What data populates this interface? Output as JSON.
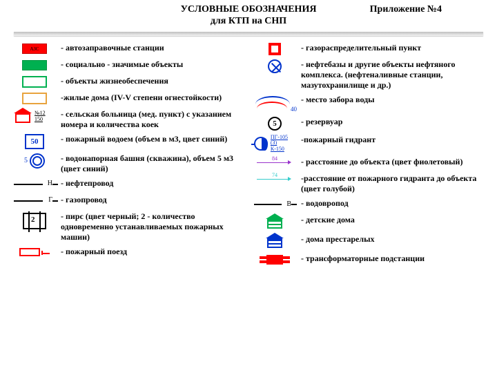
{
  "header": {
    "title_line1": "УСЛОВНЫЕ ОБОЗНАЧЕНИЯ",
    "title_line2": "для КТП на СНП",
    "appendix": "Приложение №4"
  },
  "left": [
    {
      "sym": "box-red-filled",
      "inner": "АЗС",
      "desc": "- автозаправочные станции"
    },
    {
      "sym": "box-green-filled",
      "desc": "- социально - значимые объекты"
    },
    {
      "sym": "box-green-out",
      "desc": "- объекты жизнеобеспечения"
    },
    {
      "sym": "box-orange-out",
      "desc": "-жилые дома (IV-V степени огнестойкости)"
    },
    {
      "sym": "hospital",
      "num_top": "№12",
      "num_bot": "150",
      "desc": "- сельская больница (мед. пункт)  с указанием номера и количества коек"
    },
    {
      "sym": "box-blue-50",
      "inner": "50",
      "desc": "- пожарный водоем (объем в м3, цвет синий)"
    },
    {
      "sym": "ring-blue",
      "side": "5",
      "desc": "- водонапорная башня (скважина), объем 5 м3 (цвет синий)"
    },
    {
      "sym": "pipe-line",
      "letter": "Н",
      "desc": "- нефтепровод"
    },
    {
      "sym": "pipe-line",
      "letter": "Г",
      "desc": "- газопровод"
    },
    {
      "sym": "pier",
      "num": "2",
      "desc": "- пирс (цвет черный; 2 - количество одновременно устанавливаемых пожарных машин)"
    },
    {
      "sym": "fire-train",
      "desc": "- пожарный поезд"
    }
  ],
  "right": [
    {
      "sym": "sq-red-small",
      "desc": "- газораспределительный пункт"
    },
    {
      "sym": "circ-x",
      "desc": "-  нефтебазы и другие объекты нефтяного комплекса. (нефтеналивные станции, мазутохранилище и др.)"
    },
    {
      "sym": "water-intake",
      "num": "40",
      "desc": "- место забора воды"
    },
    {
      "sym": "circ-5",
      "inner": "5",
      "desc": "- резервуар"
    },
    {
      "sym": "hydrant",
      "txt1": "ПГ-105 (3)",
      "txt2": "К-150",
      "desc": "-пожарный гидрант"
    },
    {
      "sym": "arrow-violet",
      "num": "84",
      "color": "#9933cc",
      "desc": "- расстояние до объекта (цвет фиолетовый)"
    },
    {
      "sym": "arrow-cyan",
      "num": "74",
      "color": "#33cccc",
      "desc": "-расстояние от пожарного гидранта до объекта (цвет голубой)"
    },
    {
      "sym": "water-supply",
      "letter": "В",
      "desc": "- водовропод"
    },
    {
      "sym": "house-green",
      "desc": "- детские дома"
    },
    {
      "sym": "house-blue",
      "desc": "- дома престарелых"
    },
    {
      "sym": "transformer",
      "desc": "- трансформаторные подстанции"
    }
  ],
  "colors": {
    "red": "#ff0000",
    "green": "#00b050",
    "orange": "#e8a33d",
    "blue": "#0033cc",
    "violet": "#9933cc",
    "cyan": "#33cccc"
  }
}
